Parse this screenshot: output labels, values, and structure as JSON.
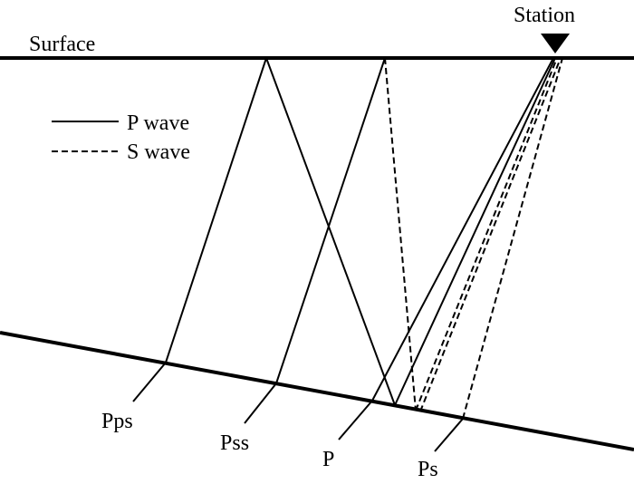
{
  "labels": {
    "surface": "Surface",
    "station": "Station",
    "legend_p": "P wave",
    "legend_s": "S wave",
    "phase_pps": "Pps",
    "phase_pss": "Pss",
    "phase_p": "P",
    "phase_ps": "Ps"
  },
  "colors": {
    "stroke": "#000000",
    "background": "#ffffff"
  },
  "icons": {
    "station": "inverted-triangle-icon"
  }
}
